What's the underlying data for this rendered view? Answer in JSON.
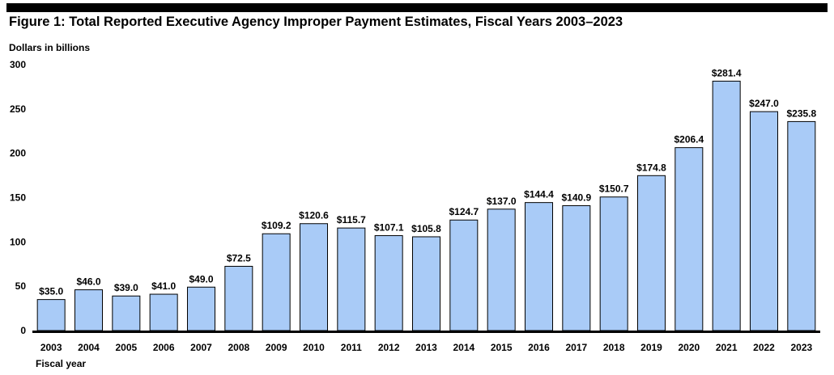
{
  "chart_data": {
    "type": "bar",
    "title": "Figure 1: Total Reported Executive Agency Improper Payment Estimates, Fiscal Years 2003–2023",
    "ylabel": "Dollars in billions",
    "xlabel": "Fiscal year",
    "ylim": [
      0,
      300
    ],
    "yticks": [
      0,
      50,
      100,
      150,
      200,
      250,
      300
    ],
    "grid": false,
    "categories": [
      "2003",
      "2004",
      "2005",
      "2006",
      "2007",
      "2008",
      "2009",
      "2010",
      "2011",
      "2012",
      "2013",
      "2014",
      "2015",
      "2016",
      "2017",
      "2018",
      "2019",
      "2020",
      "2021",
      "2022",
      "2023"
    ],
    "values": [
      35.0,
      46.0,
      39.0,
      41.0,
      49.0,
      72.5,
      109.2,
      120.6,
      115.7,
      107.1,
      105.8,
      124.7,
      137.0,
      144.4,
      140.9,
      150.7,
      174.8,
      206.4,
      281.4,
      247.0,
      235.8
    ],
    "value_labels": [
      "$35.0",
      "$46.0",
      "$39.0",
      "$41.0",
      "$49.0",
      "$72.5",
      "$109.2",
      "$120.6",
      "$115.7",
      "$107.1",
      "$105.8",
      "$124.7",
      "$137.0",
      "$144.4",
      "$140.9",
      "$150.7",
      "$174.8",
      "$206.4",
      "$281.4",
      "$247.0",
      "$235.8"
    ],
    "bar_color": "#a9cbf7"
  }
}
